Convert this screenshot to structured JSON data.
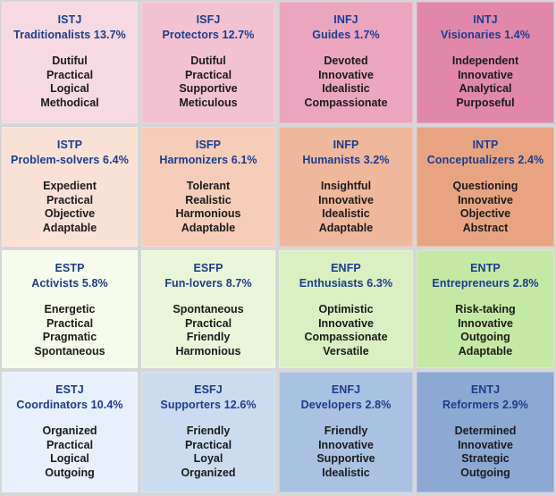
{
  "cells": [
    {
      "code": "ISTJ",
      "group": "Traditionalists 13.7%",
      "traits": [
        "Dutiful",
        "Practical",
        "Logical",
        "Methodical"
      ],
      "color": "#f6d9e2"
    },
    {
      "code": "ISFJ",
      "group": "Protectors 12.7%",
      "traits": [
        "Dutiful",
        "Practical",
        "Supportive",
        "Meticulous"
      ],
      "color": "#f2c2d2"
    },
    {
      "code": "INFJ",
      "group": "Guides 1.7%",
      "traits": [
        "Devoted",
        "Innovative",
        "Idealistic",
        "Compassionate"
      ],
      "color": "#eba5bf"
    },
    {
      "code": "INTJ",
      "group": "Visionaries 1.4%",
      "traits": [
        "Independent",
        "Innovative",
        "Analytical",
        "Purposeful"
      ],
      "color": "#e188aa"
    },
    {
      "code": "ISTP",
      "group": "Problem-solvers 6.4%",
      "traits": [
        "Expedient",
        "Practical",
        "Objective",
        "Adaptable"
      ],
      "color": "#f9e1d6"
    },
    {
      "code": "ISFP",
      "group": "Harmonizers 6.1%",
      "traits": [
        "Tolerant",
        "Realistic",
        "Harmonious",
        "Adaptable"
      ],
      "color": "#f6cdb8"
    },
    {
      "code": "INFP",
      "group": "Humanists 3.2%",
      "traits": [
        "Insightful",
        "Innovative",
        "Idealistic",
        "Adaptable"
      ],
      "color": "#efb79c"
    },
    {
      "code": "INTP",
      "group": "Conceptualizers 2.4%",
      "traits": [
        "Questioning",
        "Innovative",
        "Objective",
        "Abstract"
      ],
      "color": "#e8a482"
    },
    {
      "code": "ESTP",
      "group": "Activists 5.8%",
      "traits": [
        "Energetic",
        "Practical",
        "Pragmatic",
        "Spontaneous"
      ],
      "color": "#f6fbeb"
    },
    {
      "code": "ESFP",
      "group": "Fun-lovers 8.7%",
      "traits": [
        "Spontaneous",
        "Practical",
        "Friendly",
        "Harmonious"
      ],
      "color": "#eaf6d8"
    },
    {
      "code": "ENFP",
      "group": "Enthusiasts 6.3%",
      "traits": [
        "Optimistic",
        "Innovative",
        "Compassionate",
        "Versatile"
      ],
      "color": "#daf0c2"
    },
    {
      "code": "ENTP",
      "group": "Entrepreneurs 2.8%",
      "traits": [
        "Risk-taking",
        "Innovative",
        "Outgoing",
        "Adaptable"
      ],
      "color": "#c4e9a4"
    },
    {
      "code": "ESTJ",
      "group": "Coordinators 10.4%",
      "traits": [
        "Organized",
        "Practical",
        "Logical",
        "Outgoing"
      ],
      "color": "#e7f0fb"
    },
    {
      "code": "ESFJ",
      "group": "Supporters 12.6%",
      "traits": [
        "Friendly",
        "Practical",
        "Loyal",
        "Organized"
      ],
      "color": "#cbdcf0"
    },
    {
      "code": "ENFJ",
      "group": "Developers 2.8%",
      "traits": [
        "Friendly",
        "Innovative",
        "Supportive",
        "Idealistic"
      ],
      "color": "#a9c2e2"
    },
    {
      "code": "ENTJ",
      "group": "Reformers 2.9%",
      "traits": [
        "Determined",
        "Innovative",
        "Strategic",
        "Outgoing"
      ],
      "color": "#8ba9d3"
    }
  ]
}
